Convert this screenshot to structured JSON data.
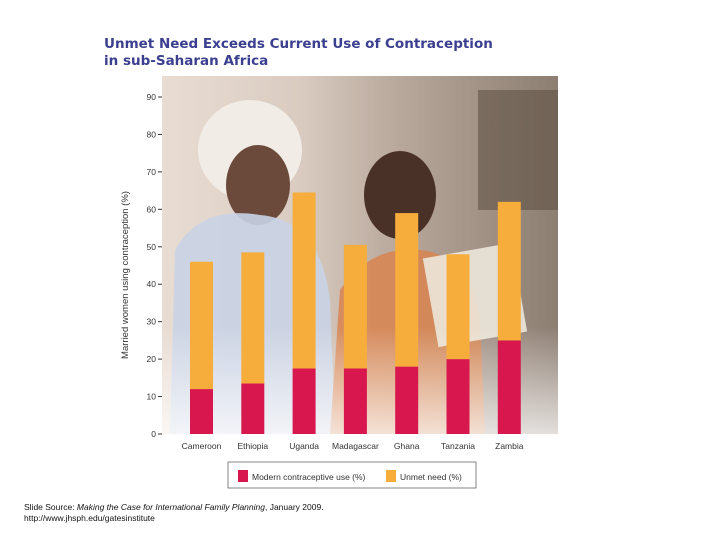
{
  "chart_data": {
    "type": "bar",
    "stacked": true,
    "title_lines": [
      "Unmet Need Exceeds Current Use of Contraception",
      "in sub-Saharan Africa"
    ],
    "ylabel": "Married women using contraception (%)",
    "xlabel": "",
    "ylim": [
      0,
      90
    ],
    "yticks": [
      0,
      10,
      20,
      30,
      40,
      50,
      60,
      70,
      80,
      90
    ],
    "categories": [
      "Cameroon",
      "Ethiopia",
      "Uganda",
      "Madagascar",
      "Ghana",
      "Tanzania",
      "Zambia"
    ],
    "series": [
      {
        "name": "Modern contraceptive use (%)",
        "color": "#d8174f",
        "values": [
          12,
          13.5,
          17.5,
          17.5,
          18,
          20,
          25
        ]
      },
      {
        "name": "Unmet need (%)",
        "color": "#f6ad3c",
        "values": [
          34,
          35,
          47,
          33,
          41,
          28,
          37
        ]
      }
    ],
    "legend_position": "bottom",
    "background": "photo of two women reading"
  },
  "source": {
    "prefix": "Slide Source: ",
    "title": "Making the Case for International Family Planning",
    "suffix": ", January 2009.",
    "url": "http://www.jhsph.edu/gatesinstitute"
  }
}
